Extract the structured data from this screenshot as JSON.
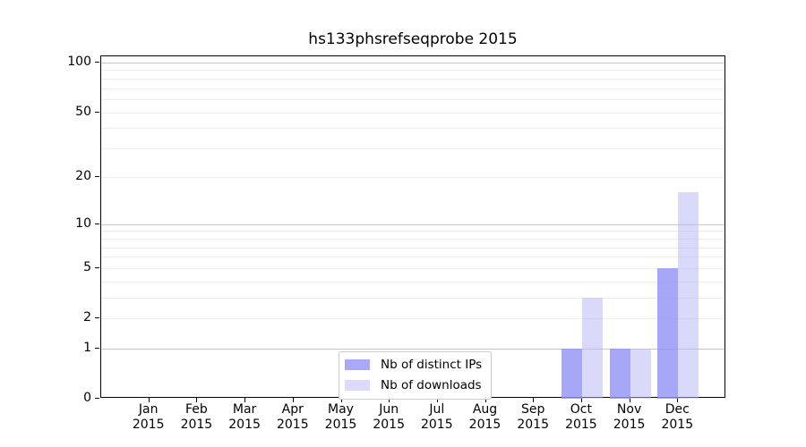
{
  "title": "hs133phsrefseqprobe 2015",
  "colors": {
    "background": "#ffffff",
    "spine": "#000000",
    "major_grid": "#c6c6c6",
    "minor_grid": "#ececec",
    "distinct_ips": "#a9a9f7",
    "downloads": "#dbdbf9"
  },
  "chart_data": {
    "type": "bar",
    "title": "hs133phsrefseqprobe 2015",
    "categories": [
      "Jan",
      "Feb",
      "Mar",
      "Apr",
      "May",
      "Jun",
      "Jul",
      "Aug",
      "Sep",
      "Oct",
      "Nov",
      "Dec"
    ],
    "year_label": "2015",
    "series": [
      {
        "name": "Nb of distinct IPs",
        "key": "distinct-ips",
        "color": "#a9a9f7",
        "bar_color": "rgba(148,148,246,0.82)",
        "values": [
          0,
          0,
          0,
          0,
          0,
          0,
          0,
          0,
          0,
          1,
          1,
          5
        ]
      },
      {
        "name": "Nb of downloads",
        "key": "downloads",
        "color": "#dbdbf9",
        "bar_color": "rgba(182,182,245,0.52)",
        "values": [
          0,
          0,
          0,
          0,
          0,
          0,
          0,
          0,
          0,
          3,
          1,
          16
        ]
      }
    ],
    "xlabel": "",
    "ylabel": "",
    "y_axis": {
      "ticks": [
        0,
        1,
        2,
        5,
        10,
        20,
        50,
        100
      ],
      "scale": "log10(value+1)",
      "ylim": [
        0,
        109
      ],
      "grid": true,
      "major_gridlines": [
        1,
        10,
        100
      ],
      "minor_gridlines": [
        2,
        3,
        4,
        5,
        6,
        7,
        8,
        9,
        20,
        30,
        40,
        50,
        60,
        70,
        80,
        90
      ]
    },
    "legend_position": "lower center"
  }
}
